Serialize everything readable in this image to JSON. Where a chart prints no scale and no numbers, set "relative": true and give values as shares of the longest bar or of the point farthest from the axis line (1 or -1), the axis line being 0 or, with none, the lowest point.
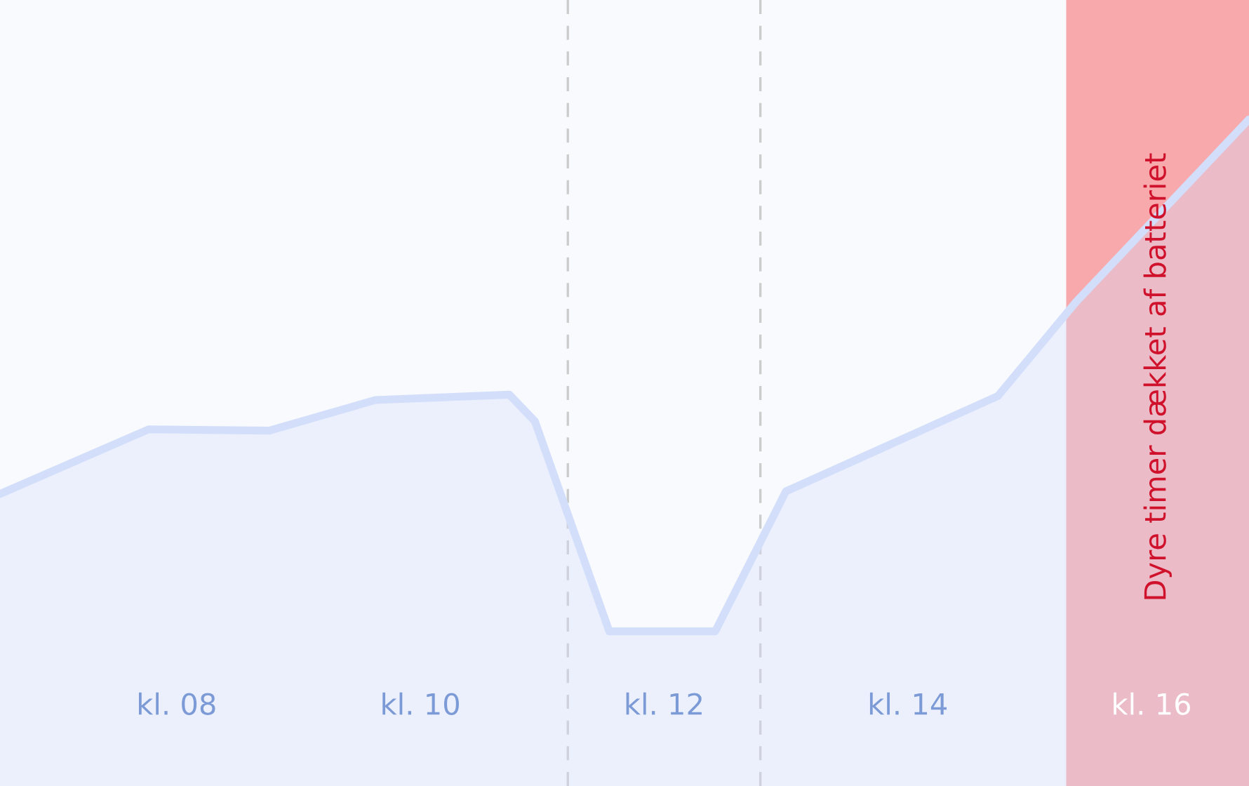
{
  "chart_data": {
    "type": "area",
    "relative": true,
    "x": [
      6.55,
      7.77,
      8.76,
      9.63,
      10.73,
      10.94,
      11.55,
      12.42,
      13.0,
      14.74,
      15.38,
      16.8
    ],
    "series": [
      {
        "color": "#d3defa",
        "values": [
          0.438,
          0.535,
          0.533,
          0.579,
          0.587,
          0.547,
          0.232,
          0.232,
          0.442,
          0.585,
          0.726,
          1.0
        ]
      }
    ],
    "xlim": [
      6.55,
      16.8
    ],
    "xticks": [
      {
        "value": 8,
        "label": "kl. 08"
      },
      {
        "value": 10,
        "label": "kl. 10"
      },
      {
        "value": 12,
        "label": "kl. 12"
      },
      {
        "value": 14,
        "label": "kl. 14"
      },
      {
        "value": 16,
        "label": "kl. 16"
      }
    ],
    "tick_labels": "x",
    "ref_lines": [
      {
        "axis": "x",
        "value": 11.21,
        "color": "#cccccc",
        "line_style": "dashed"
      },
      {
        "axis": "x",
        "value": 12.79,
        "color": "#cccccc",
        "line_style": "dashed"
      }
    ],
    "bands": [
      {
        "axis": "x",
        "from": 15.3,
        "to": 16.8,
        "label": "Dyre timer dækket af batteriet",
        "color": "#f79a9e"
      }
    ],
    "grid": false,
    "legend": false
  }
}
